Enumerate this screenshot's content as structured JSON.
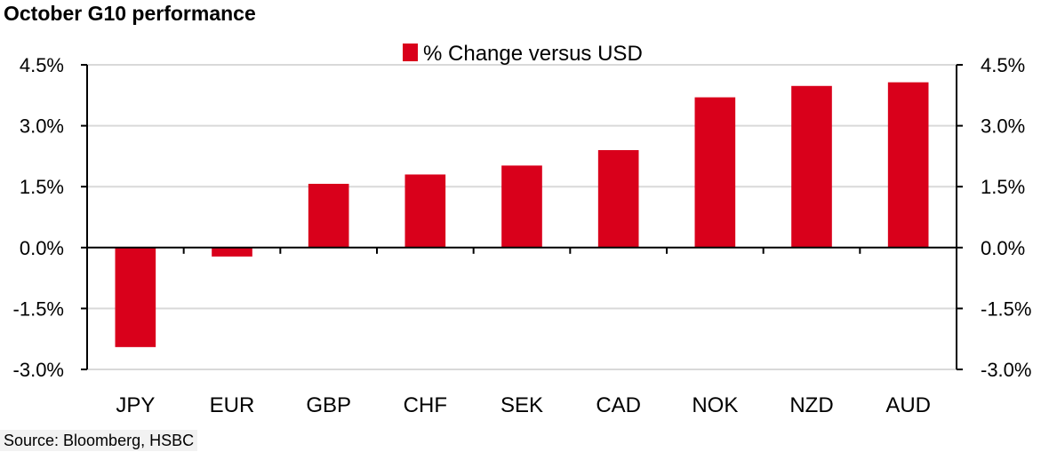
{
  "chart_data": {
    "type": "bar",
    "title": "October G10 performance",
    "categories": [
      "JPY",
      "EUR",
      "GBP",
      "CHF",
      "SEK",
      "CAD",
      "NOK",
      "NZD",
      "AUD"
    ],
    "series": [
      {
        "name": "% Change versus USD",
        "color": "#d9001b",
        "values": [
          -2.45,
          -0.22,
          1.57,
          1.8,
          2.02,
          2.4,
          3.7,
          3.98,
          4.07
        ]
      }
    ],
    "ylim": [
      -3.0,
      4.5
    ],
    "yticks": [
      4.5,
      3.0,
      1.5,
      0.0,
      -1.5,
      -3.0
    ],
    "ytick_labels": [
      "4.5%",
      "3.0%",
      "1.5%",
      "0.0%",
      "-1.5%",
      "-3.0%"
    ],
    "grid": true,
    "legend": "top-center",
    "secondary_y_axis": true
  },
  "source": "Source: Bloomberg, HSBC",
  "colors": {
    "bar": "#d9001b",
    "grid": "#d9d9d9",
    "axis": "#000000"
  }
}
